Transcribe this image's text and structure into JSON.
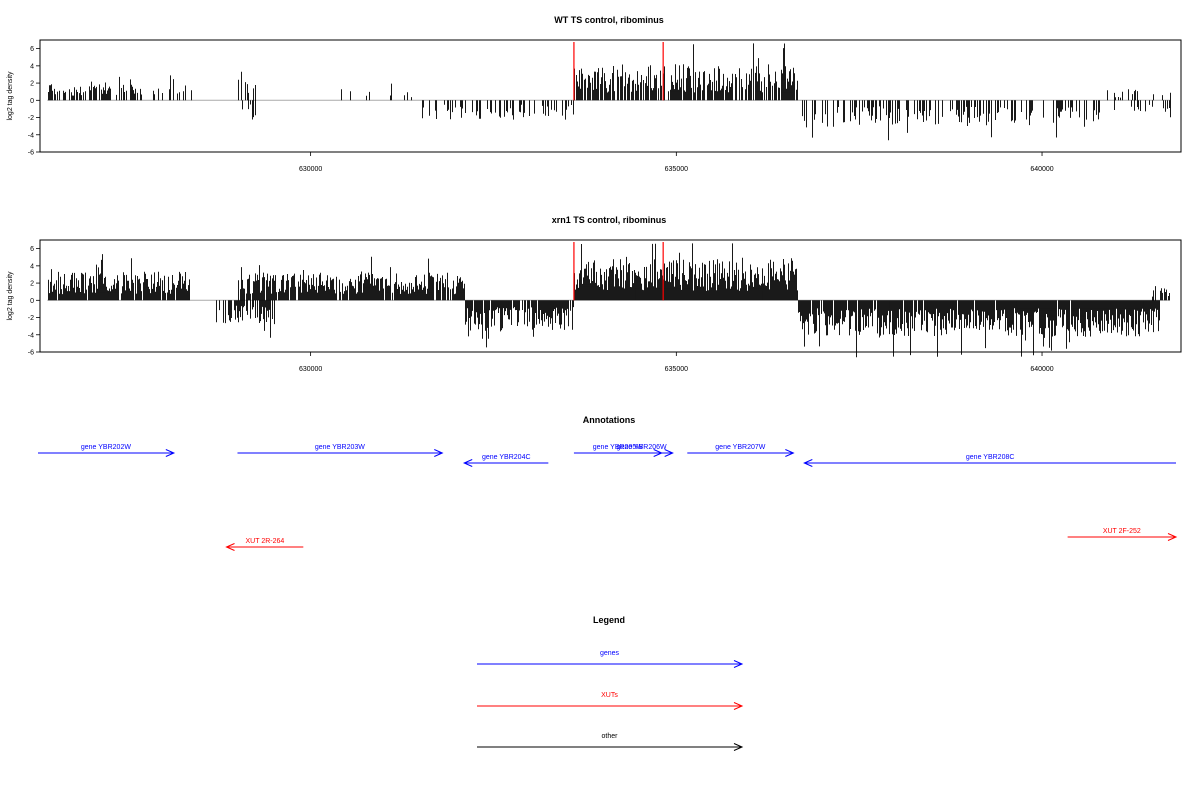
{
  "chart_data": [
    {
      "type": "bar",
      "title": "WT TS control, ribominus",
      "xlabel": "",
      "ylabel": "log2 tag density",
      "xlim": [
        626300,
        641900
      ],
      "ylim": [
        -6,
        7
      ],
      "y_ticks": [
        "6",
        "4",
        "2",
        "0",
        "-2",
        "-4",
        "-6"
      ],
      "x_ticks": [
        "630000",
        "635000",
        "640000"
      ],
      "x_tick_values": [
        630000,
        635000,
        640000
      ],
      "red_markers": [
        633600,
        634820
      ],
      "segments": [
        {
          "x0": 626400,
          "x1": 627400,
          "sign": 1,
          "mag": 1.6,
          "density": 0.55
        },
        {
          "x0": 627400,
          "x1": 628400,
          "sign": 1,
          "mag": 1.3,
          "density": 0.3
        },
        {
          "x0": 629000,
          "x1": 629250,
          "sign": 1,
          "mag": 2.0,
          "density": 0.5
        },
        {
          "x0": 629050,
          "x1": 629250,
          "sign": -1,
          "mag": 1.6,
          "density": 0.5
        },
        {
          "x0": 630200,
          "x1": 631500,
          "sign": 1,
          "mag": 1.1,
          "density": 0.12
        },
        {
          "x0": 631500,
          "x1": 633600,
          "sign": -1,
          "mag": 1.6,
          "density": 0.35
        },
        {
          "x0": 633600,
          "x1": 636650,
          "sign": 1,
          "mag": 3.0,
          "density": 0.75
        },
        {
          "x0": 636650,
          "x1": 640800,
          "sign": -1,
          "mag": 2.2,
          "density": 0.42
        },
        {
          "x0": 640800,
          "x1": 641750,
          "sign": 1,
          "mag": 1.0,
          "density": 0.18
        },
        {
          "x0": 640900,
          "x1": 641750,
          "sign": -1,
          "mag": 1.0,
          "density": 0.2
        }
      ],
      "seed": 11
    },
    {
      "type": "bar",
      "title": "xrn1 TS control, ribominus",
      "xlabel": "",
      "ylabel": "log2 tag density",
      "xlim": [
        626300,
        641900
      ],
      "ylim": [
        -6,
        7
      ],
      "y_ticks": [
        "6",
        "4",
        "2",
        "0",
        "-2",
        "-4",
        "-6"
      ],
      "x_ticks": [
        "630000",
        "635000",
        "640000"
      ],
      "x_tick_values": [
        630000,
        635000,
        640000
      ],
      "red_markers": [
        633600,
        634820
      ],
      "segments": [
        {
          "x0": 626400,
          "x1": 628350,
          "sign": 1,
          "mag": 2.4,
          "density": 0.95
        },
        {
          "x0": 628700,
          "x1": 629500,
          "sign": -1,
          "mag": 2.0,
          "density": 0.55
        },
        {
          "x0": 629000,
          "x1": 632100,
          "sign": 1,
          "mag": 2.3,
          "density": 0.9
        },
        {
          "x0": 632100,
          "x1": 633600,
          "sign": -1,
          "mag": 2.6,
          "density": 0.9
        },
        {
          "x0": 633600,
          "x1": 636650,
          "sign": 1,
          "mag": 3.6,
          "density": 1.0
        },
        {
          "x0": 636650,
          "x1": 641600,
          "sign": -1,
          "mag": 3.0,
          "density": 0.95
        },
        {
          "x0": 641500,
          "x1": 641750,
          "sign": 1,
          "mag": 1.2,
          "density": 0.4
        }
      ],
      "seed": 37
    }
  ],
  "annotations": {
    "title": "Annotations",
    "features": [
      {
        "label": "gene YBR202W",
        "type": "gene",
        "start": 625950,
        "end": 628130,
        "strand": "+",
        "row": 0
      },
      {
        "label": "gene YBR203W",
        "type": "gene",
        "start": 629000,
        "end": 631800,
        "strand": "+",
        "row": 0
      },
      {
        "label": "gene YBR204C",
        "type": "gene",
        "start": 632100,
        "end": 633250,
        "strand": "-",
        "row": 1
      },
      {
        "label": "gene YBR205W",
        "type": "gene",
        "start": 633600,
        "end": 634800,
        "strand": "+",
        "row": 0
      },
      {
        "label": "gene YBR206W",
        "type": "gene",
        "start": 634100,
        "end": 634950,
        "strand": "+",
        "row": 0
      },
      {
        "label": "gene YBR207W",
        "type": "gene",
        "start": 635150,
        "end": 636600,
        "strand": "+",
        "row": 0
      },
      {
        "label": "gene YBR208C",
        "type": "gene",
        "start": 636750,
        "end": 642300,
        "strand": "-",
        "row": 1
      },
      {
        "label": "XUT 2R-264",
        "type": "xut",
        "start": 628850,
        "end": 629900,
        "strand": "-",
        "row": 2
      },
      {
        "label": "XUT 2F-252",
        "type": "xut",
        "start": 640350,
        "end": 642350,
        "strand": "+",
        "row": 3
      }
    ]
  },
  "legend": {
    "title": "Legend",
    "entries": [
      {
        "label": "genes",
        "type": "gene"
      },
      {
        "label": "XUTs",
        "type": "xut"
      },
      {
        "label": "other",
        "type": "other"
      }
    ]
  },
  "colors": {
    "gene": "#0000ff",
    "xut": "#ff0000",
    "other": "#000000",
    "marker": "#ff0000",
    "bars": "#000000",
    "zero_line": "#aaaaaa"
  }
}
